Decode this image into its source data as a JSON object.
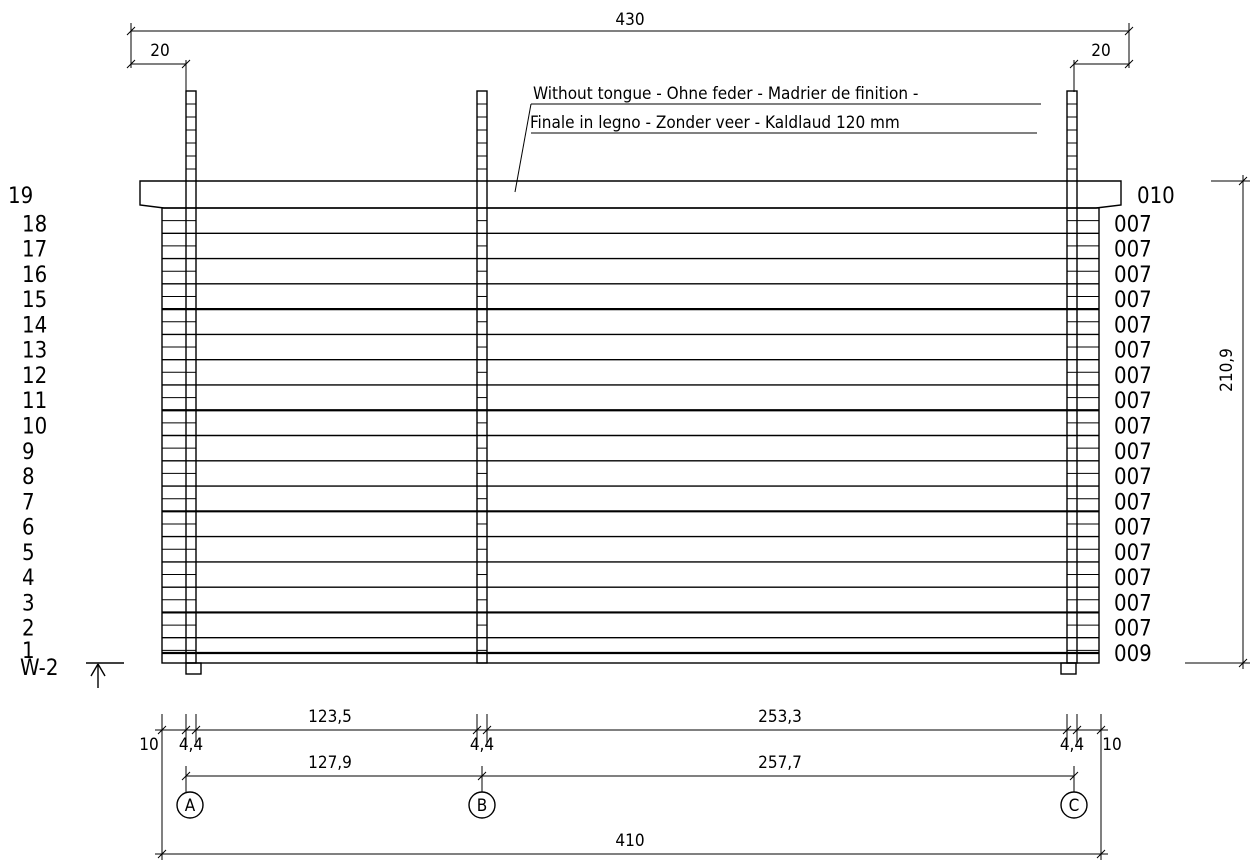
{
  "dimensions": {
    "top_overall": "430",
    "top_left_overhang": "20",
    "top_right_overhang": "20",
    "height_total": "210,9",
    "bottom_overall": "410",
    "bottom_left_offset": "10",
    "bottom_right_offset": "10",
    "inner_span_1": "123,5",
    "inner_span_2": "253,3",
    "post_a_width": "4,4",
    "post_b_width": "4,4",
    "post_c_width": "4,4",
    "axis_span_1": "127,9",
    "axis_span_2": "257,7"
  },
  "note": {
    "line1": "Without tongue - Ohne feder - Madrier de finition -",
    "line2": "Finale in legno - Zonder veer - Kaldlaud 120 mm"
  },
  "rows": [
    {
      "num": "19",
      "code": "010"
    },
    {
      "num": "18",
      "code": "007"
    },
    {
      "num": "17",
      "code": "007"
    },
    {
      "num": "16",
      "code": "007"
    },
    {
      "num": "15",
      "code": "007"
    },
    {
      "num": "14",
      "code": "007"
    },
    {
      "num": "13",
      "code": "007"
    },
    {
      "num": "12",
      "code": "007"
    },
    {
      "num": "11",
      "code": "007"
    },
    {
      "num": "10",
      "code": "007"
    },
    {
      "num": "9",
      "code": "007"
    },
    {
      "num": "8",
      "code": "007"
    },
    {
      "num": "7",
      "code": "007"
    },
    {
      "num": "6",
      "code": "007"
    },
    {
      "num": "5",
      "code": "007"
    },
    {
      "num": "4",
      "code": "007"
    },
    {
      "num": "3",
      "code": "007"
    },
    {
      "num": "2",
      "code": "007"
    },
    {
      "num": "1",
      "code": "009"
    }
  ],
  "wall_label": "W-2",
  "axes": [
    "A",
    "B",
    "C"
  ]
}
